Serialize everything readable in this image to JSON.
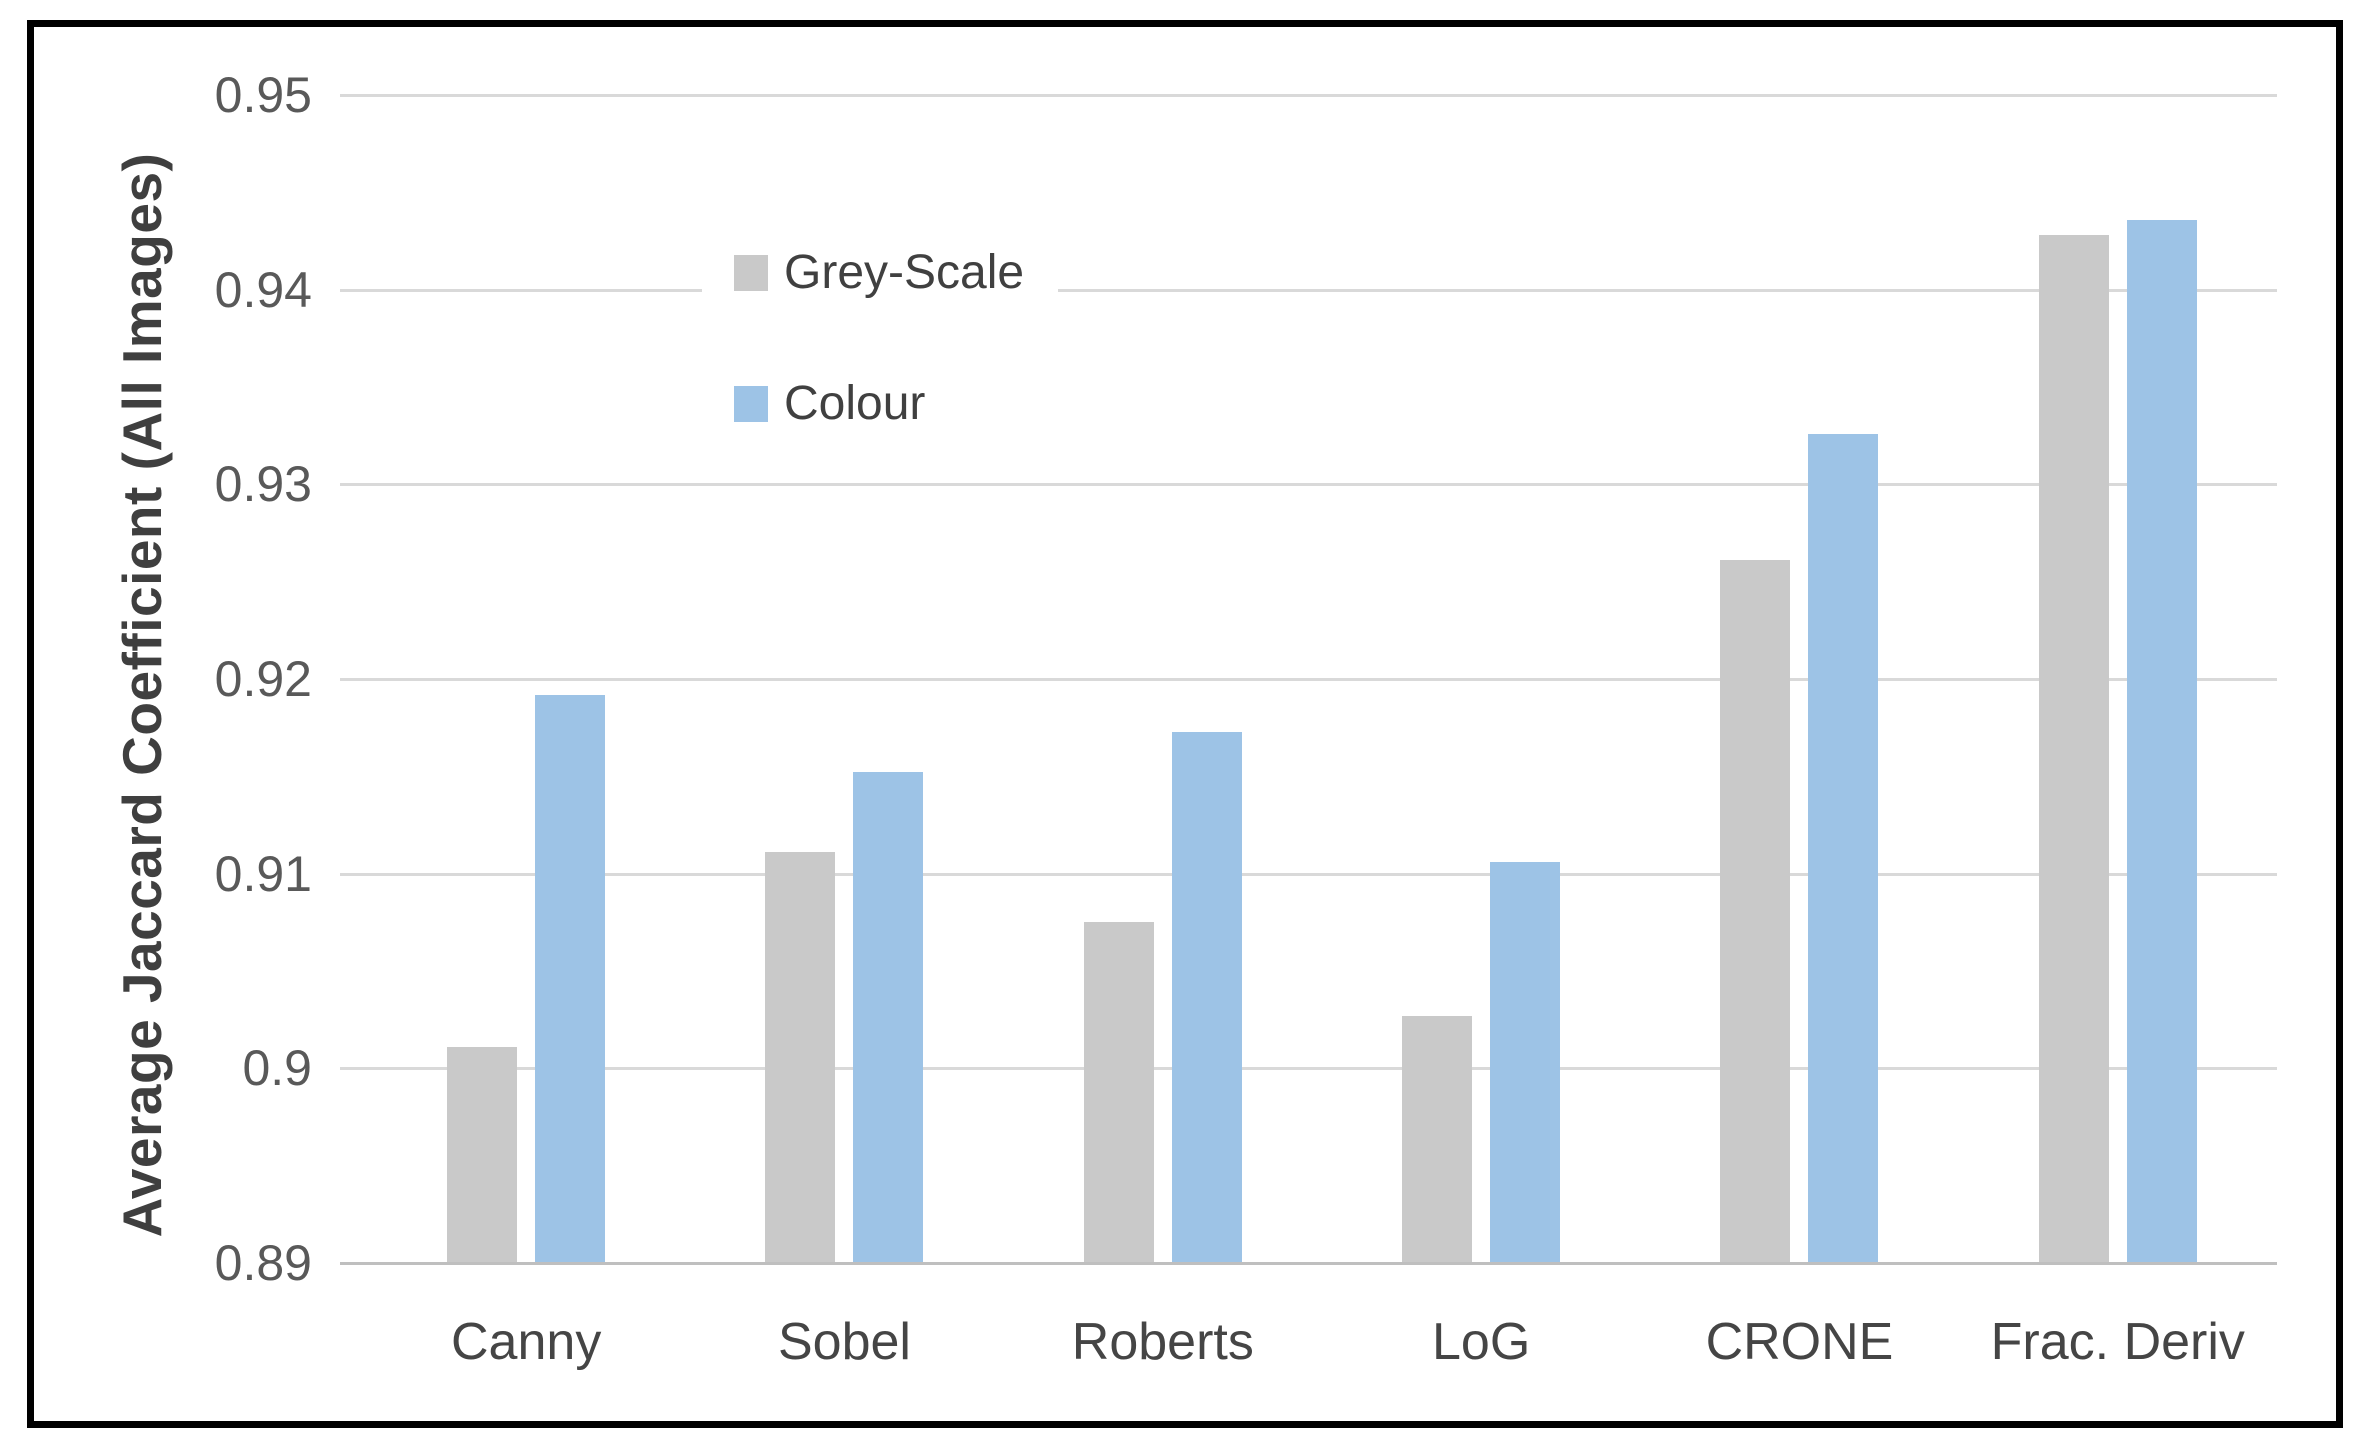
{
  "figure": {
    "background_color": "#ffffff",
    "frame_color": "#000000"
  },
  "chart_data": {
    "type": "bar",
    "title": "",
    "xlabel": "",
    "ylabel": "Average Jaccard Coefficient (All Images)",
    "categories": [
      "Canny",
      "Sobel",
      "Roberts",
      "LoG",
      "CRONE",
      "Frac. Deriv"
    ],
    "series": [
      {
        "name": "Grey-Scale",
        "color": "#C9C9C9",
        "values": [
          0.9011,
          0.9111,
          0.9075,
          0.9027,
          0.9261,
          0.9428
        ]
      },
      {
        "name": "Colour",
        "color": "#9DC3E6",
        "values": [
          0.9192,
          0.9152,
          0.9173,
          0.9106,
          0.9326,
          0.9436
        ]
      }
    ],
    "ylim": [
      0.89,
      0.95
    ],
    "yticks": [
      0.89,
      0.9,
      0.91,
      0.92,
      0.93,
      0.94,
      0.95
    ],
    "ytick_labels": [
      "0.89",
      "0.9",
      "0.91",
      "0.92",
      "0.93",
      "0.94",
      "0.95"
    ],
    "grid": true,
    "gridline_color": "#D9D9D9",
    "axis_line_color": "#BFBFBF",
    "tick_text_color": "#595959",
    "category_text_color": "#454545",
    "legend_position": "top-left",
    "legend_background": "#ffffff"
  }
}
